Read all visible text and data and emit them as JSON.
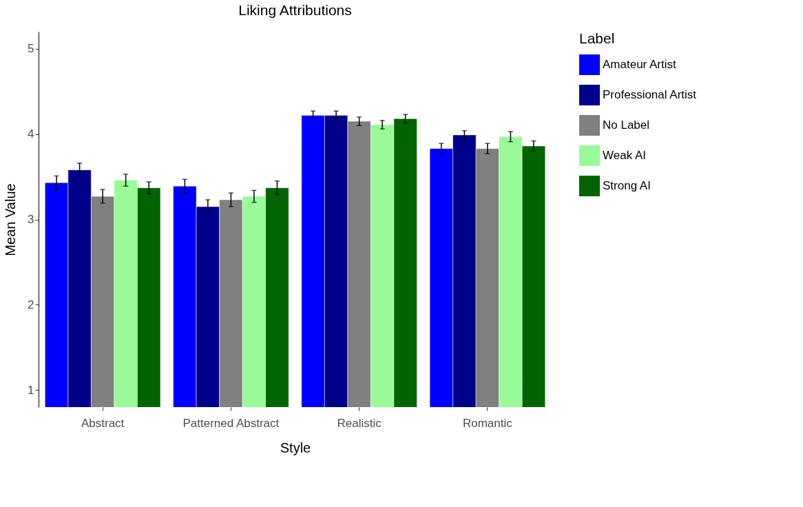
{
  "chart_data": {
    "type": "bar",
    "title": "Liking Attributions",
    "xlabel": "Style",
    "ylabel": "Mean Value",
    "legend_title": "Label",
    "legend": "right",
    "grid": false,
    "categories": [
      "Abstract",
      "Patterned Abstract",
      "Realistic",
      "Romantic"
    ],
    "ylim": [
      0.8,
      5.2
    ],
    "yticks": [
      1,
      2,
      3,
      4,
      5
    ],
    "series": [
      {
        "name": "Amateur Artist",
        "color": "#0000ff",
        "values": [
          3.43,
          3.39,
          4.22,
          3.83
        ],
        "errors": [
          0.08,
          0.08,
          0.05,
          0.06
        ]
      },
      {
        "name": "Professional Artist",
        "color": "#00008b",
        "values": [
          3.58,
          3.15,
          4.22,
          3.99
        ],
        "errors": [
          0.08,
          0.08,
          0.05,
          0.05
        ]
      },
      {
        "name": "No Label",
        "color": "#808080",
        "values": [
          3.27,
          3.23,
          4.15,
          3.83
        ],
        "errors": [
          0.08,
          0.08,
          0.05,
          0.06
        ]
      },
      {
        "name": "Weak AI",
        "color": "#98fb98",
        "values": [
          3.46,
          3.27,
          4.11,
          3.97
        ],
        "errors": [
          0.07,
          0.07,
          0.05,
          0.06
        ]
      },
      {
        "name": "Strong AI",
        "color": "#006400",
        "values": [
          3.37,
          3.37,
          4.18,
          3.86
        ],
        "errors": [
          0.07,
          0.08,
          0.05,
          0.06
        ]
      }
    ]
  }
}
